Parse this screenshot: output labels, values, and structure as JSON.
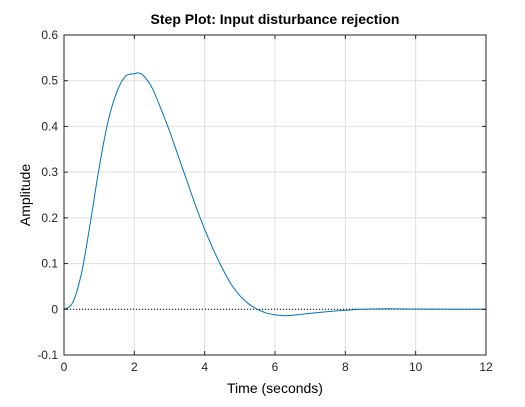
{
  "chart_data": {
    "type": "line",
    "title": "Step Plot: Input disturbance rejection",
    "xlabel": "Time (seconds)",
    "ylabel": "Amplitude",
    "xlim": [
      0,
      12
    ],
    "ylim": [
      -0.1,
      0.6
    ],
    "xticks": [
      0,
      2,
      4,
      6,
      8,
      10,
      12
    ],
    "yticks": [
      -0.1,
      0,
      0.1,
      0.2,
      0.3,
      0.4,
      0.5,
      0.6
    ],
    "xtick_labels": [
      "0",
      "2",
      "4",
      "6",
      "8",
      "10",
      "12"
    ],
    "ytick_labels": [
      "-0.1",
      "0",
      "0.1",
      "0.2",
      "0.3",
      "0.4",
      "0.5",
      "0.6"
    ],
    "grid": true,
    "reference_line": {
      "y": 0,
      "style": "dotted",
      "color": "#000000"
    },
    "series": [
      {
        "color": "#0072BD",
        "x": [
          0,
          0.25,
          0.5,
          0.75,
          1.0,
          1.25,
          1.5,
          1.75,
          2.0,
          2.1,
          2.25,
          2.5,
          2.75,
          3.0,
          3.25,
          3.5,
          3.75,
          4.0,
          4.25,
          4.5,
          4.75,
          5.0,
          5.25,
          5.5,
          5.75,
          6.0,
          6.25,
          6.5,
          6.75,
          7.0,
          7.5,
          8.0,
          8.5,
          9.0,
          9.5,
          10.0,
          10.5,
          11.0,
          11.5,
          12.0
        ],
        "y": [
          0.0,
          0.015,
          0.08,
          0.19,
          0.31,
          0.41,
          0.475,
          0.51,
          0.515,
          0.517,
          0.512,
          0.485,
          0.44,
          0.39,
          0.335,
          0.28,
          0.225,
          0.175,
          0.13,
          0.09,
          0.055,
          0.03,
          0.012,
          0.0,
          -0.008,
          -0.012,
          -0.014,
          -0.013,
          -0.011,
          -0.009,
          -0.005,
          -0.002,
          0.0,
          0.001,
          0.001,
          0.0005,
          0.0003,
          0.0001,
          0.0,
          0.0
        ]
      }
    ]
  }
}
